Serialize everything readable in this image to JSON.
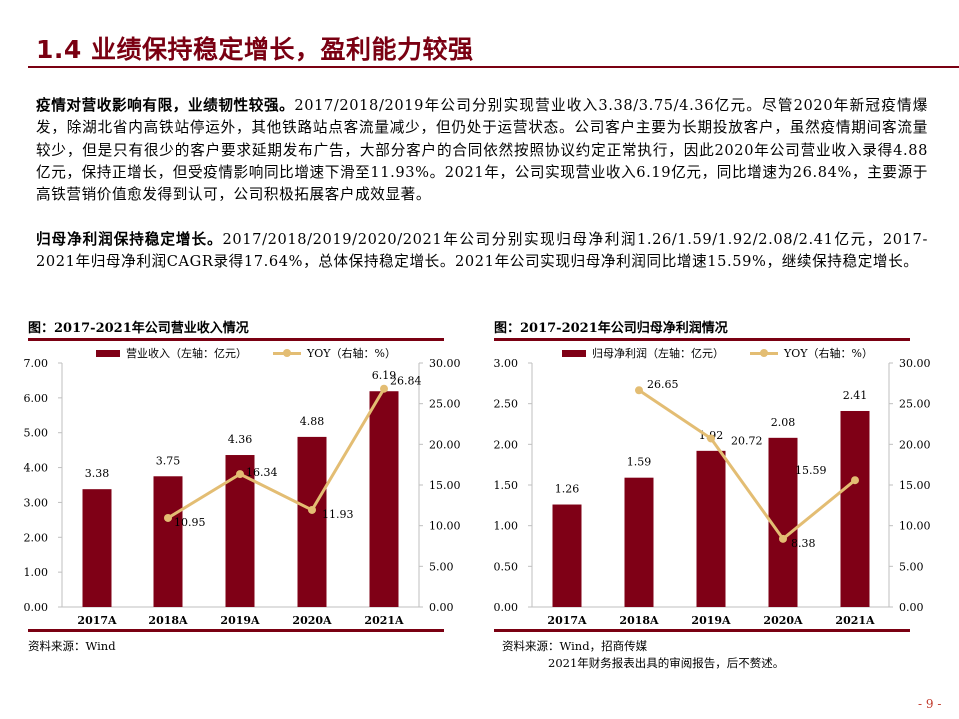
{
  "header": {
    "title": "1.4 业绩保持稳定增长，盈利能力较强"
  },
  "paragraphs": [
    {
      "lead": "疫情对营收影响有限，业绩韧性较强。",
      "body": "2017/2018/2019年公司分别实现营业收入3.38/3.75/4.36亿元。尽管2020年新冠疫情爆发，除湖北省内高铁站停运外，其他铁路站点客流量减少，但仍处于运营状态。公司客户主要为长期投放客户，虽然疫情期间客流量较少，但是只有很少的客户要求延期发布广告，大部分客户的合同依然按照协议约定正常执行，因此2020年公司营业收入录得4.88亿元，保持正增长，但受疫情影响同比增速下滑至11.93%。2021年，公司实现营业收入6.19亿元，同比增速为26.84%，主要源于高铁营销价值愈发得到认可，公司积极拓展客户成效显著。"
    },
    {
      "lead": "归母净利润保持稳定增长。",
      "body": "2017/2018/2019/2020/2021年公司分别实现归母净利润1.26/1.59/1.92/2.08/2.41亿元，2017-2021年归母净利润CAGR录得17.64%，总体保持稳定增长。2021年公司实现归母净利润同比增速15.59%，继续保持稳定增长。"
    }
  ],
  "colors": {
    "brand": "#7a0012",
    "bar": "#7f0016",
    "line": "#e3bd73",
    "axis": "#bfbfbf"
  },
  "figures": [
    {
      "title": "图：2017-2021年公司营业收入情况",
      "legend_bar": "营业收入（左轴：亿元）",
      "legend_line": "YOY（右轴：%）",
      "source": "资料来源：Wind",
      "source_note": ""
    },
    {
      "title": "图：2017-2021年公司归母净利润情况",
      "legend_bar": "归母净利润（左轴：亿元）",
      "legend_line": "YOY（右轴：%）",
      "source": "资料来源：Wind，招商传媒",
      "source_note": "2021年财务报表出具的审阅报告，后不赘述。"
    }
  ],
  "chart_data": [
    {
      "type": "bar",
      "title": "2017-2021年公司营业收入情况",
      "categories": [
        "2017A",
        "2018A",
        "2019A",
        "2020A",
        "2021A"
      ],
      "series": [
        {
          "name": "营业收入（左轴：亿元）",
          "type": "bar",
          "axis": "left",
          "values": [
            3.38,
            3.75,
            4.36,
            4.88,
            6.19
          ]
        },
        {
          "name": "YOY（右轴：%）",
          "type": "line",
          "axis": "right",
          "values": [
            null,
            10.95,
            16.34,
            11.93,
            26.84
          ]
        }
      ],
      "ylim_left": [
        0,
        7
      ],
      "yticks_left": [
        "0.00",
        "1.00",
        "2.00",
        "3.00",
        "4.00",
        "5.00",
        "6.00",
        "7.00"
      ],
      "ylim_right": [
        0,
        30
      ],
      "yticks_right": [
        "0.00",
        "5.00",
        "10.00",
        "15.00",
        "20.00",
        "25.00",
        "30.00"
      ],
      "legend_position": "top",
      "grid": false
    },
    {
      "type": "bar",
      "title": "2017-2021年公司归母净利润情况",
      "categories": [
        "2017A",
        "2018A",
        "2019A",
        "2020A",
        "2021A"
      ],
      "series": [
        {
          "name": "归母净利润（左轴：亿元）",
          "type": "bar",
          "axis": "left",
          "values": [
            1.26,
            1.59,
            1.92,
            2.08,
            2.41
          ]
        },
        {
          "name": "YOY（右轴：%）",
          "type": "line",
          "axis": "right",
          "values": [
            null,
            26.65,
            20.72,
            8.38,
            15.59
          ]
        }
      ],
      "ylim_left": [
        0,
        3
      ],
      "yticks_left": [
        "0.00",
        "0.50",
        "1.00",
        "1.50",
        "2.00",
        "2.50",
        "3.00"
      ],
      "ylim_right": [
        0,
        30
      ],
      "yticks_right": [
        "0.00",
        "5.00",
        "10.00",
        "15.00",
        "20.00",
        "25.00",
        "30.00"
      ],
      "legend_position": "top",
      "grid": false
    }
  ],
  "footer": {
    "page": "- 9 -"
  }
}
